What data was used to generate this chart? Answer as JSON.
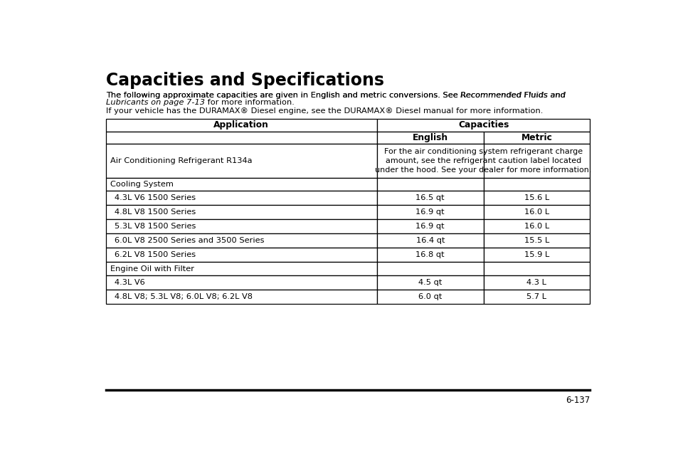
{
  "title": "Capacities and Specifications",
  "para1_normal": "The following approximate capacities are given in English and metric conversions. See ",
  "para1_italic": "Recommended Fluids and",
  "para2_italic": "Lubricants on page 7-13",
  "para2_normal": " for more information.",
  "para3": "If your vehicle has the DURAMAX® Diesel engine, see the DURAMAX® Diesel manual for more information.",
  "table": {
    "rows": [
      {
        "type": "header1",
        "app": "Application",
        "span": "Capacities"
      },
      {
        "type": "header2",
        "app": "",
        "english": "English",
        "metric": "Metric"
      },
      {
        "type": "ac",
        "app": "Air Conditioning Refrigerant R134a",
        "span_text": "For the air conditioning system refrigerant charge\namount, see the refrigerant caution label located\nunder the hood. See your dealer for more information."
      },
      {
        "type": "section",
        "app": "Cooling System"
      },
      {
        "type": "data",
        "app": "4.3L V6 1500 Series",
        "english": "16.5 qt",
        "metric": "15.6 L"
      },
      {
        "type": "data",
        "app": "4.8L V8 1500 Series",
        "english": "16.9 qt",
        "metric": "16.0 L"
      },
      {
        "type": "data",
        "app": "5.3L V8 1500 Series",
        "english": "16.9 qt",
        "metric": "16.0 L"
      },
      {
        "type": "data",
        "app": "6.0L V8 2500 Series and 3500 Series",
        "english": "16.4 qt",
        "metric": "15.5 L"
      },
      {
        "type": "data",
        "app": "6.2L V8 1500 Series",
        "english": "16.8 qt",
        "metric": "15.9 L"
      },
      {
        "type": "section",
        "app": "Engine Oil with Filter"
      },
      {
        "type": "data",
        "app": "4.3L V6",
        "english": "4.5 qt",
        "metric": "4.3 L"
      },
      {
        "type": "data",
        "app": "4.8L V8; 5.3L V8; 6.0L V8; 6.2L V8",
        "english": "6.0 qt",
        "metric": "5.7 L"
      }
    ]
  },
  "page_number": "6-137",
  "bg_color": "#ffffff",
  "text_color": "#000000",
  "border_color": "#000000"
}
